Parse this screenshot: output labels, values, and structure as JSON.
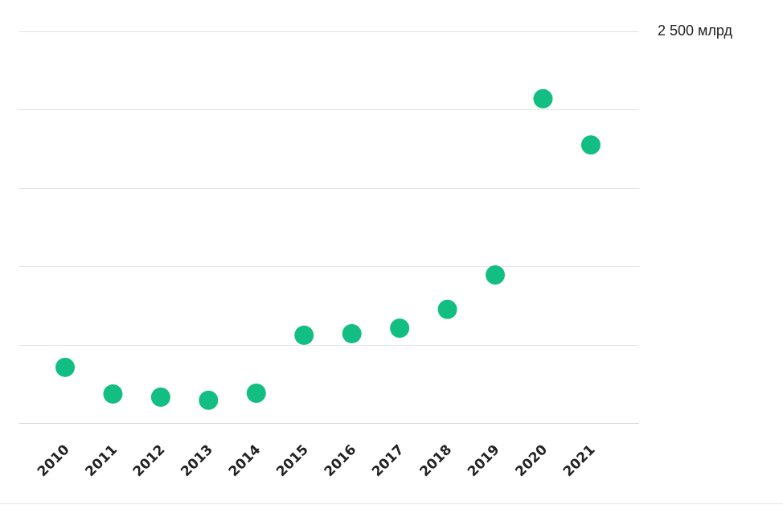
{
  "chart_data": {
    "type": "scatter",
    "x": [
      "2010",
      "2011",
      "2012",
      "2013",
      "2014",
      "2015",
      "2016",
      "2017",
      "2018",
      "2019",
      "2020",
      "2021"
    ],
    "y": [
      355,
      185,
      165,
      145,
      190,
      560,
      570,
      605,
      725,
      945,
      2070,
      1775
    ],
    "ylim": [
      0,
      2500
    ],
    "ytick_label": "2 500 млрд",
    "grid": true,
    "marker_color": "#12be82"
  }
}
